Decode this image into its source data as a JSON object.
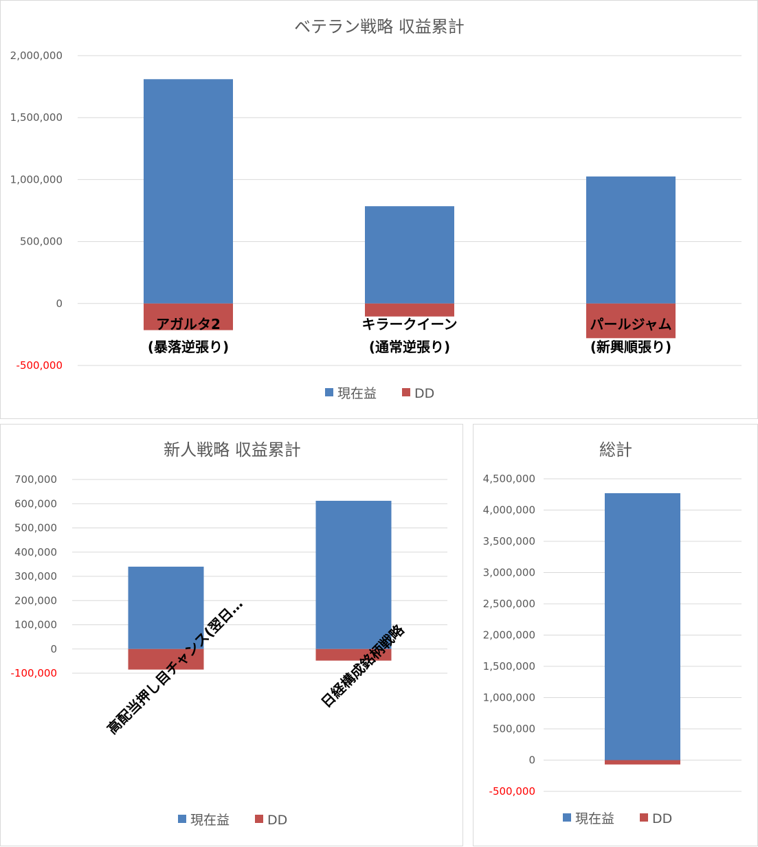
{
  "colors": {
    "profit": "#4f81bd",
    "dd": "#c0504d",
    "negative_tick": "#ff0000",
    "gridline": "#d9d9d9",
    "text": "#595959"
  },
  "chart_data": [
    {
      "type": "bar",
      "stacked": true,
      "title": "ベテラン戦略 収益累計",
      "categories": [
        [
          "アガルタ2",
          "(暴落逆張り)"
        ],
        [
          "キラークイーン",
          "(通常逆張り)"
        ],
        [
          "パールジャム",
          "(新興順張り)"
        ]
      ],
      "series": [
        {
          "name": "現在益",
          "color": "#4f81bd",
          "values": [
            1810000,
            785000,
            1025000
          ]
        },
        {
          "name": "DD",
          "color": "#c0504d",
          "values": [
            -215000,
            -105000,
            -280000
          ]
        }
      ],
      "ylim": [
        -500000,
        2000000
      ],
      "yticks": [
        -500000,
        0,
        500000,
        1000000,
        1500000,
        2000000
      ],
      "ytick_labels": [
        "-500,000",
        "0",
        "500,000",
        "1,000,000",
        "1,500,000",
        "2,000,000"
      ],
      "grid": true,
      "legend": "bottom"
    },
    {
      "type": "bar",
      "stacked": true,
      "title": "新人戦略 収益累計",
      "categories": [
        [
          "高配当押し目チャンス(翌日…"
        ],
        [
          "日経構成銘柄戦略"
        ]
      ],
      "series": [
        {
          "name": "現在益",
          "color": "#4f81bd",
          "values": [
            340000,
            612000
          ]
        },
        {
          "name": "DD",
          "color": "#c0504d",
          "values": [
            -85000,
            -48000
          ]
        }
      ],
      "ylim": [
        -100000,
        700000
      ],
      "yticks": [
        -100000,
        0,
        100000,
        200000,
        300000,
        400000,
        500000,
        600000,
        700000
      ],
      "ytick_labels": [
        "-100,000",
        "0",
        "100,000",
        "200,000",
        "300,000",
        "400,000",
        "500,000",
        "600,000",
        "700,000"
      ],
      "grid": true,
      "legend": "bottom"
    },
    {
      "type": "bar",
      "stacked": true,
      "title": "総計",
      "categories": [
        [
          ""
        ]
      ],
      "series": [
        {
          "name": "現在益",
          "color": "#4f81bd",
          "values": [
            4270000
          ]
        },
        {
          "name": "DD",
          "color": "#c0504d",
          "values": [
            -70000
          ]
        }
      ],
      "ylim": [
        -500000,
        4500000
      ],
      "yticks": [
        -500000,
        0,
        500000,
        1000000,
        1500000,
        2000000,
        2500000,
        3000000,
        3500000,
        4000000,
        4500000
      ],
      "ytick_labels": [
        "-500,000",
        "0",
        "500,000",
        "1,000,000",
        "1,500,000",
        "2,000,000",
        "2,500,000",
        "3,000,000",
        "3,500,000",
        "4,000,000",
        "4,500,000"
      ],
      "grid": true,
      "legend": "bottom"
    }
  ]
}
